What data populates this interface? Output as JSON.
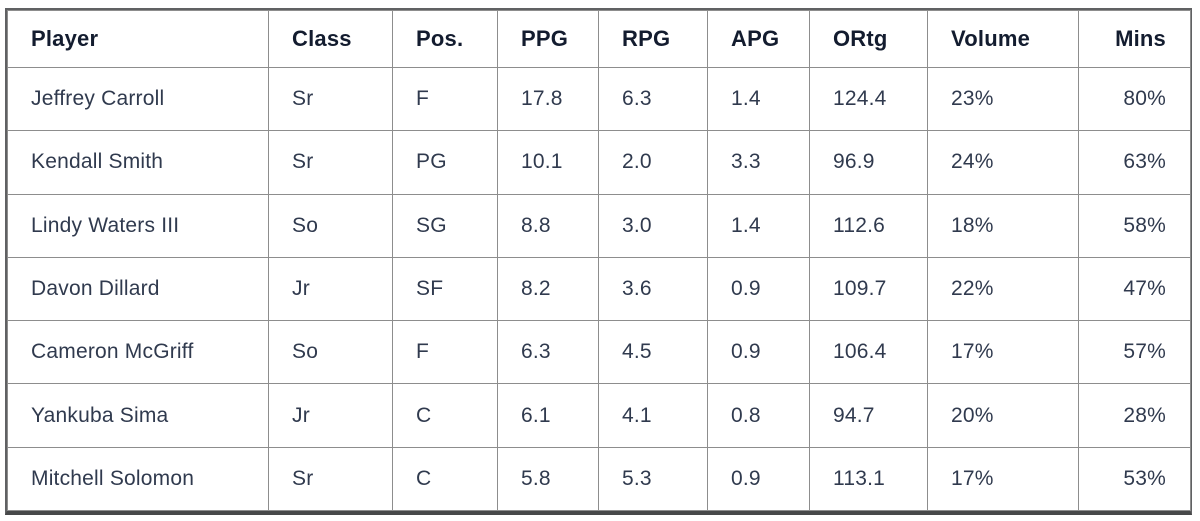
{
  "chart_data": {
    "type": "table",
    "title": "",
    "columns": [
      "Player",
      "Class",
      "Pos.",
      "PPG",
      "RPG",
      "APG",
      "ORtg",
      "Volume",
      "Mins"
    ],
    "rows": [
      [
        "Jeffrey Carroll",
        "Sr",
        "F",
        "17.8",
        "6.3",
        "1.4",
        "124.4",
        "23%",
        "80%"
      ],
      [
        "Kendall Smith",
        "Sr",
        "PG",
        "10.1",
        "2.0",
        "3.3",
        "96.9",
        "24%",
        "63%"
      ],
      [
        "Lindy Waters III",
        "So",
        "SG",
        "8.8",
        "3.0",
        "1.4",
        "112.6",
        "18%",
        "58%"
      ],
      [
        "Davon Dillard",
        "Jr",
        "SF",
        "8.2",
        "3.6",
        "0.9",
        "109.7",
        "22%",
        "47%"
      ],
      [
        "Cameron McGriff",
        "So",
        "F",
        "6.3",
        "4.5",
        "0.9",
        "106.4",
        "17%",
        "57%"
      ],
      [
        "Yankuba Sima",
        "Jr",
        "C",
        "6.1",
        "4.1",
        "0.8",
        "94.7",
        "20%",
        "28%"
      ],
      [
        "Mitchell Solomon",
        "Sr",
        "C",
        "5.8",
        "5.3",
        "0.9",
        "113.1",
        "17%",
        "53%"
      ]
    ],
    "layout_hints": {
      "header_bold": true,
      "last_column_align": "right",
      "grid": true
    }
  },
  "colors": {
    "header_text": "#131c2f",
    "body_text": "#303a4e",
    "gridline": "#8d8d8d",
    "outer_border": "#606163",
    "bottom_border": "#474849",
    "background": "#ffffff"
  }
}
